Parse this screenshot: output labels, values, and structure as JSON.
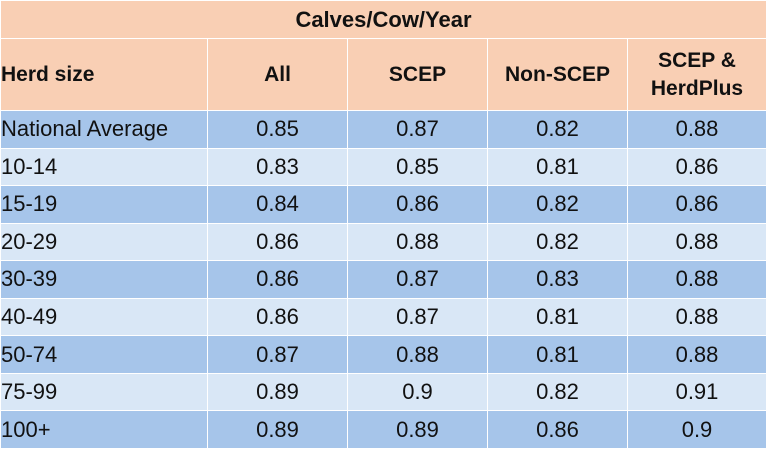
{
  "title": "Calves/Cow/Year",
  "columns": [
    "Herd size",
    "All",
    "SCEP",
    "Non-SCEP",
    "SCEP & HerdPlus"
  ],
  "rows": [
    [
      "National Average",
      "0.85",
      "0.87",
      "0.82",
      "0.88"
    ],
    [
      "10-14",
      "0.83",
      "0.85",
      "0.81",
      "0.86"
    ],
    [
      "15-19",
      "0.84",
      "0.86",
      "0.82",
      "0.86"
    ],
    [
      "20-29",
      "0.86",
      "0.88",
      "0.82",
      "0.88"
    ],
    [
      "30-39",
      "0.86",
      "0.87",
      "0.83",
      "0.88"
    ],
    [
      "40-49",
      "0.86",
      "0.87",
      "0.81",
      "0.88"
    ],
    [
      "50-74",
      "0.87",
      "0.88",
      "0.81",
      "0.88"
    ],
    [
      "75-99",
      "0.89",
      "0.9",
      "0.82",
      "0.91"
    ],
    [
      "100+",
      "0.89",
      "0.89",
      "0.86",
      "0.9"
    ]
  ],
  "colors": {
    "header_bg": "#f9cfb4",
    "row_dark": "#a6c5ea",
    "row_light": "#d9e7f6"
  }
}
